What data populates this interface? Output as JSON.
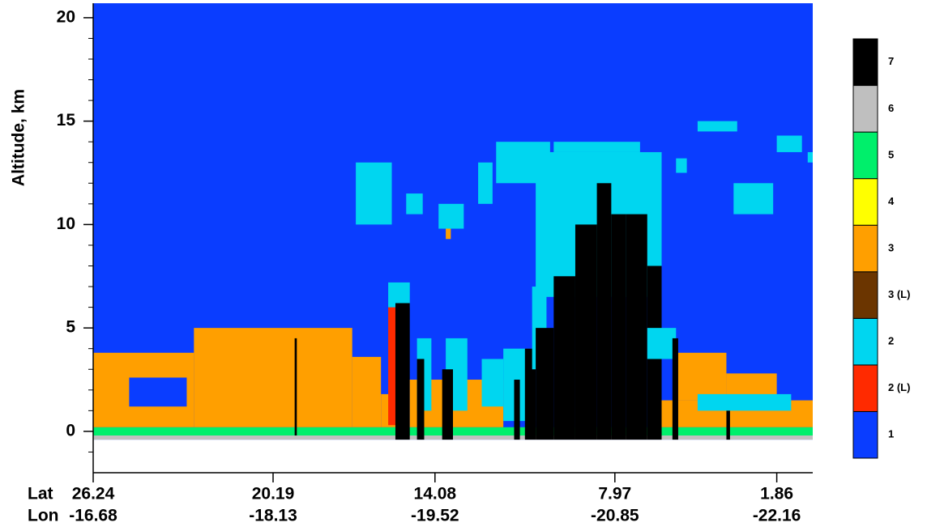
{
  "chart_data": {
    "type": "feature-mask",
    "ylabel": "Altitude, km",
    "ylim": [
      -2,
      20.7
    ],
    "yticks": [
      0,
      5,
      10,
      15,
      20
    ],
    "yminor_ticks": [
      -1,
      1,
      2,
      3,
      4,
      6,
      7,
      8,
      9,
      11,
      12,
      13,
      14,
      16,
      17,
      18,
      19
    ],
    "xlim": [
      0,
      100
    ],
    "x_row_labels": [
      "Lat",
      "Lon"
    ],
    "xticks": [
      {
        "value": 0,
        "label": "26.24"
      },
      {
        "value": 25,
        "label": "20.19"
      },
      {
        "value": 47.5,
        "label": "14.08"
      },
      {
        "value": 72.5,
        "label": "7.97"
      },
      {
        "value": 95,
        "label": "1.86"
      }
    ],
    "x2ticks": [
      {
        "value": 0,
        "label": "-16.68"
      },
      {
        "value": 25,
        "label": "-18.13"
      },
      {
        "value": 47.5,
        "label": "-19.52"
      },
      {
        "value": 72.5,
        "label": "-20.85"
      },
      {
        "value": 95,
        "label": "-22.16"
      }
    ],
    "legend": [
      {
        "label": "1",
        "color": "#0a3dff"
      },
      {
        "label": "2 (L)",
        "color": "#ff2a00"
      },
      {
        "label": "2",
        "color": "#00d6f0"
      },
      {
        "label": "3 (L)",
        "color": "#6b3500"
      },
      {
        "label": "3",
        "color": "#ff9f00"
      },
      {
        "label": "4",
        "color": "#ffff00"
      },
      {
        "label": "5",
        "color": "#00ef6b"
      },
      {
        "label": "6",
        "color": "#bfbfbf"
      },
      {
        "label": "7",
        "color": "#000000"
      }
    ],
    "regions": [
      {
        "x": [
          0,
          100
        ],
        "alt": [
          -0.4,
          20.7
        ],
        "color": "#0a3dff"
      },
      {
        "x": [
          0,
          100
        ],
        "alt": [
          -0.4,
          -0.2
        ],
        "color": "#bfbfbf"
      },
      {
        "x": [
          0,
          100
        ],
        "alt": [
          -0.2,
          0.2
        ],
        "color": "#00ef6b"
      },
      {
        "x": [
          0,
          14
        ],
        "alt": [
          0.2,
          3.8
        ],
        "color": "#ff9f00"
      },
      {
        "x": [
          14,
          36
        ],
        "alt": [
          0.2,
          5
        ],
        "color": "#ff9f00"
      },
      {
        "x": [
          36,
          40
        ],
        "alt": [
          0.2,
          3.6
        ],
        "color": "#ff9f00"
      },
      {
        "x": [
          40,
          42
        ],
        "alt": [
          0.2,
          1.8
        ],
        "color": "#ff9f00"
      },
      {
        "x": [
          5,
          13
        ],
        "alt": [
          1.2,
          2.6
        ],
        "color": "#0a3dff"
      },
      {
        "x": [
          28,
          28.3
        ],
        "alt": [
          -0.2,
          4.5
        ],
        "color": "#000000"
      },
      {
        "x": [
          41,
          42.2
        ],
        "alt": [
          0.3,
          6
        ],
        "color": "#ff2a00"
      },
      {
        "x": [
          41,
          44
        ],
        "alt": [
          6,
          7.2
        ],
        "color": "#00d6f0"
      },
      {
        "x": [
          42,
          44
        ],
        "alt": [
          -0.4,
          6.2
        ],
        "color": "#000000"
      },
      {
        "x": [
          44,
          57
        ],
        "alt": [
          0.2,
          2.5
        ],
        "color": "#ff9f00"
      },
      {
        "x": [
          45,
          47
        ],
        "alt": [
          1,
          4.5
        ],
        "color": "#00d6f0"
      },
      {
        "x": [
          49,
          52
        ],
        "alt": [
          1,
          4.5
        ],
        "color": "#00d6f0"
      },
      {
        "x": [
          45,
          46
        ],
        "alt": [
          -0.4,
          3.5
        ],
        "color": "#000000"
      },
      {
        "x": [
          48.5,
          50
        ],
        "alt": [
          -0.4,
          3
        ],
        "color": "#000000"
      },
      {
        "x": [
          54,
          57
        ],
        "alt": [
          1.2,
          3.5
        ],
        "color": "#00d6f0"
      },
      {
        "x": [
          57,
          61.5
        ],
        "alt": [
          0.5,
          4
        ],
        "color": "#00d6f0"
      },
      {
        "x": [
          58.5,
          59.3
        ],
        "alt": [
          -0.4,
          2.5
        ],
        "color": "#000000"
      },
      {
        "x": [
          60,
          61.5
        ],
        "alt": [
          -0.4,
          4
        ],
        "color": "#000000"
      },
      {
        "x": [
          61.5,
          79
        ],
        "alt": [
          6.5,
          13.5
        ],
        "color": "#00d6f0"
      },
      {
        "x": [
          64,
          76
        ],
        "alt": [
          13.5,
          14
        ],
        "color": "#00d6f0"
      },
      {
        "x": [
          61,
          63
        ],
        "alt": [
          3,
          7
        ],
        "color": "#00d6f0"
      },
      {
        "x": [
          61.5,
          64
        ],
        "alt": [
          -0.4,
          5
        ],
        "color": "#000000"
      },
      {
        "x": [
          64,
          67
        ],
        "alt": [
          -0.4,
          7.5
        ],
        "color": "#000000"
      },
      {
        "x": [
          67,
          70
        ],
        "alt": [
          -0.4,
          10
        ],
        "color": "#000000"
      },
      {
        "x": [
          70,
          72
        ],
        "alt": [
          -0.4,
          12
        ],
        "color": "#000000"
      },
      {
        "x": [
          72,
          74
        ],
        "alt": [
          -0.4,
          10.5
        ],
        "color": "#000000"
      },
      {
        "x": [
          74,
          77
        ],
        "alt": [
          -0.4,
          10.5
        ],
        "color": "#000000"
      },
      {
        "x": [
          77,
          79
        ],
        "alt": [
          -0.4,
          8
        ],
        "color": "#000000"
      },
      {
        "x": [
          77,
          81
        ],
        "alt": [
          3.5,
          5
        ],
        "color": "#00d6f0"
      },
      {
        "x": [
          79,
          100
        ],
        "alt": [
          0.2,
          1.5
        ],
        "color": "#ff9f00"
      },
      {
        "x": [
          81,
          88
        ],
        "alt": [
          1.5,
          3.8
        ],
        "color": "#ff9f00"
      },
      {
        "x": [
          88,
          95
        ],
        "alt": [
          1.5,
          2.8
        ],
        "color": "#ff9f00"
      },
      {
        "x": [
          84,
          97
        ],
        "alt": [
          1,
          1.8
        ],
        "color": "#00d6f0"
      },
      {
        "x": [
          80.5,
          81.3
        ],
        "alt": [
          -0.4,
          4.5
        ],
        "color": "#000000"
      },
      {
        "x": [
          88,
          88.5
        ],
        "alt": [
          -0.4,
          1
        ],
        "color": "#000000"
      },
      {
        "x": [
          36.5,
          41.5
        ],
        "alt": [
          10,
          13
        ],
        "color": "#00d6f0"
      },
      {
        "x": [
          43.5,
          45.8
        ],
        "alt": [
          10.5,
          11.5
        ],
        "color": "#00d6f0"
      },
      {
        "x": [
          48,
          51.5
        ],
        "alt": [
          9.8,
          11
        ],
        "color": "#00d6f0"
      },
      {
        "x": [
          49,
          49.7
        ],
        "alt": [
          9.3,
          9.8
        ],
        "color": "#ff9f00"
      },
      {
        "x": [
          53.5,
          55.5
        ],
        "alt": [
          11,
          13
        ],
        "color": "#00d6f0"
      },
      {
        "x": [
          56,
          63.5
        ],
        "alt": [
          12,
          14
        ],
        "color": "#00d6f0"
      },
      {
        "x": [
          84,
          89.5
        ],
        "alt": [
          14.5,
          15
        ],
        "color": "#00d6f0"
      },
      {
        "x": [
          89,
          94.5
        ],
        "alt": [
          10.5,
          12
        ],
        "color": "#00d6f0"
      },
      {
        "x": [
          95,
          98.5
        ],
        "alt": [
          13.5,
          14.3
        ],
        "color": "#00d6f0"
      },
      {
        "x": [
          81,
          82.5
        ],
        "alt": [
          12.5,
          13.2
        ],
        "color": "#00d6f0"
      },
      {
        "x": [
          99.3,
          100
        ],
        "alt": [
          13,
          13.5
        ],
        "color": "#00d6f0"
      }
    ]
  }
}
